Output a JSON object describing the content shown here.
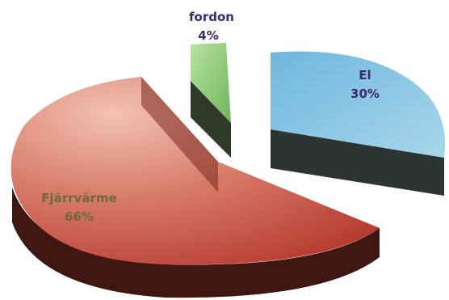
{
  "chart_data": {
    "type": "pie",
    "style": "3d-exploded",
    "title": "",
    "slices": [
      {
        "label": "fordon",
        "value": 4,
        "value_label": "4%",
        "color": "#8fcf78",
        "side_color": "#2f3f2a",
        "label_color": "#3a2a6e"
      },
      {
        "label": "El",
        "value": 30,
        "value_label": "30%",
        "color": "#7fbfe0",
        "side_color": "#2c3a3a",
        "label_color": "#3a2a6e"
      },
      {
        "label": "Fjärrvärme",
        "value": 66,
        "value_label": "66%",
        "color": "#c84a3c",
        "side_color": "#4a1a14",
        "label_color": "#6a6a3a"
      }
    ]
  }
}
